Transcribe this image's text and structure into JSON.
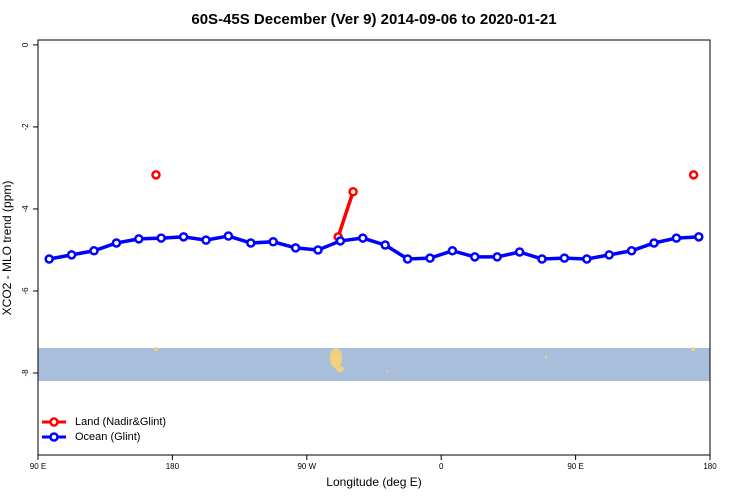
{
  "chart_data": {
    "type": "line",
    "title": "60S-45S December (Ver 9)   2014-09-06 to 2020-01-21",
    "x_label": "Longitude (deg E)",
    "y_label": "XCO2 - MLO trend (ppm)",
    "xlim": [
      90,
      540
    ],
    "ylim": [
      -10,
      0.12
    ],
    "xticks": [
      {
        "value": 90,
        "label": "90 E"
      },
      180,
      {
        "value": 270,
        "label": "90 W"
      },
      {
        "value": 360,
        "label": "0"
      },
      {
        "value": 450,
        "label": "90 E"
      },
      {
        "value": 540,
        "label": "180"
      }
    ],
    "yticks": [
      0,
      -2,
      -4,
      -6,
      -8
    ],
    "legend": "bottom-left",
    "series": [
      {
        "name": "Land (Nadir&Glint)",
        "color": "#ff0000",
        "x": [
          169,
          null,
          291,
          301,
          null,
          529
        ],
        "values": [
          -3.17,
          null,
          -4.68,
          -3.58,
          null,
          -3.17
        ]
      },
      {
        "name": "Ocean (Glint)",
        "color": "#0000ff",
        "x": [
          97.5,
          112.5,
          127.5,
          142.5,
          157.5,
          172.5,
          187.5,
          202.5,
          217.5,
          232.5,
          247.5,
          262.5,
          277.5,
          292.5,
          307.5,
          322.5,
          337.5,
          352.5,
          367.5,
          382.5,
          397.5,
          412.5,
          427.5,
          442.5,
          457.5,
          472.5,
          487.5,
          502.5,
          517.5,
          532.5
        ],
        "values": [
          -5.22,
          -5.12,
          -5.02,
          -4.83,
          -4.73,
          -4.71,
          -4.68,
          -4.76,
          -4.66,
          -4.83,
          -4.8,
          -4.95,
          -5.0,
          -4.78,
          -4.71,
          -4.88,
          -5.22,
          -5.2,
          -5.02,
          -5.17,
          -5.17,
          -5.05,
          -5.22,
          -5.2,
          -5.22,
          -5.12,
          -5.02,
          -4.83,
          -4.71,
          -4.68
        ]
      }
    ]
  }
}
